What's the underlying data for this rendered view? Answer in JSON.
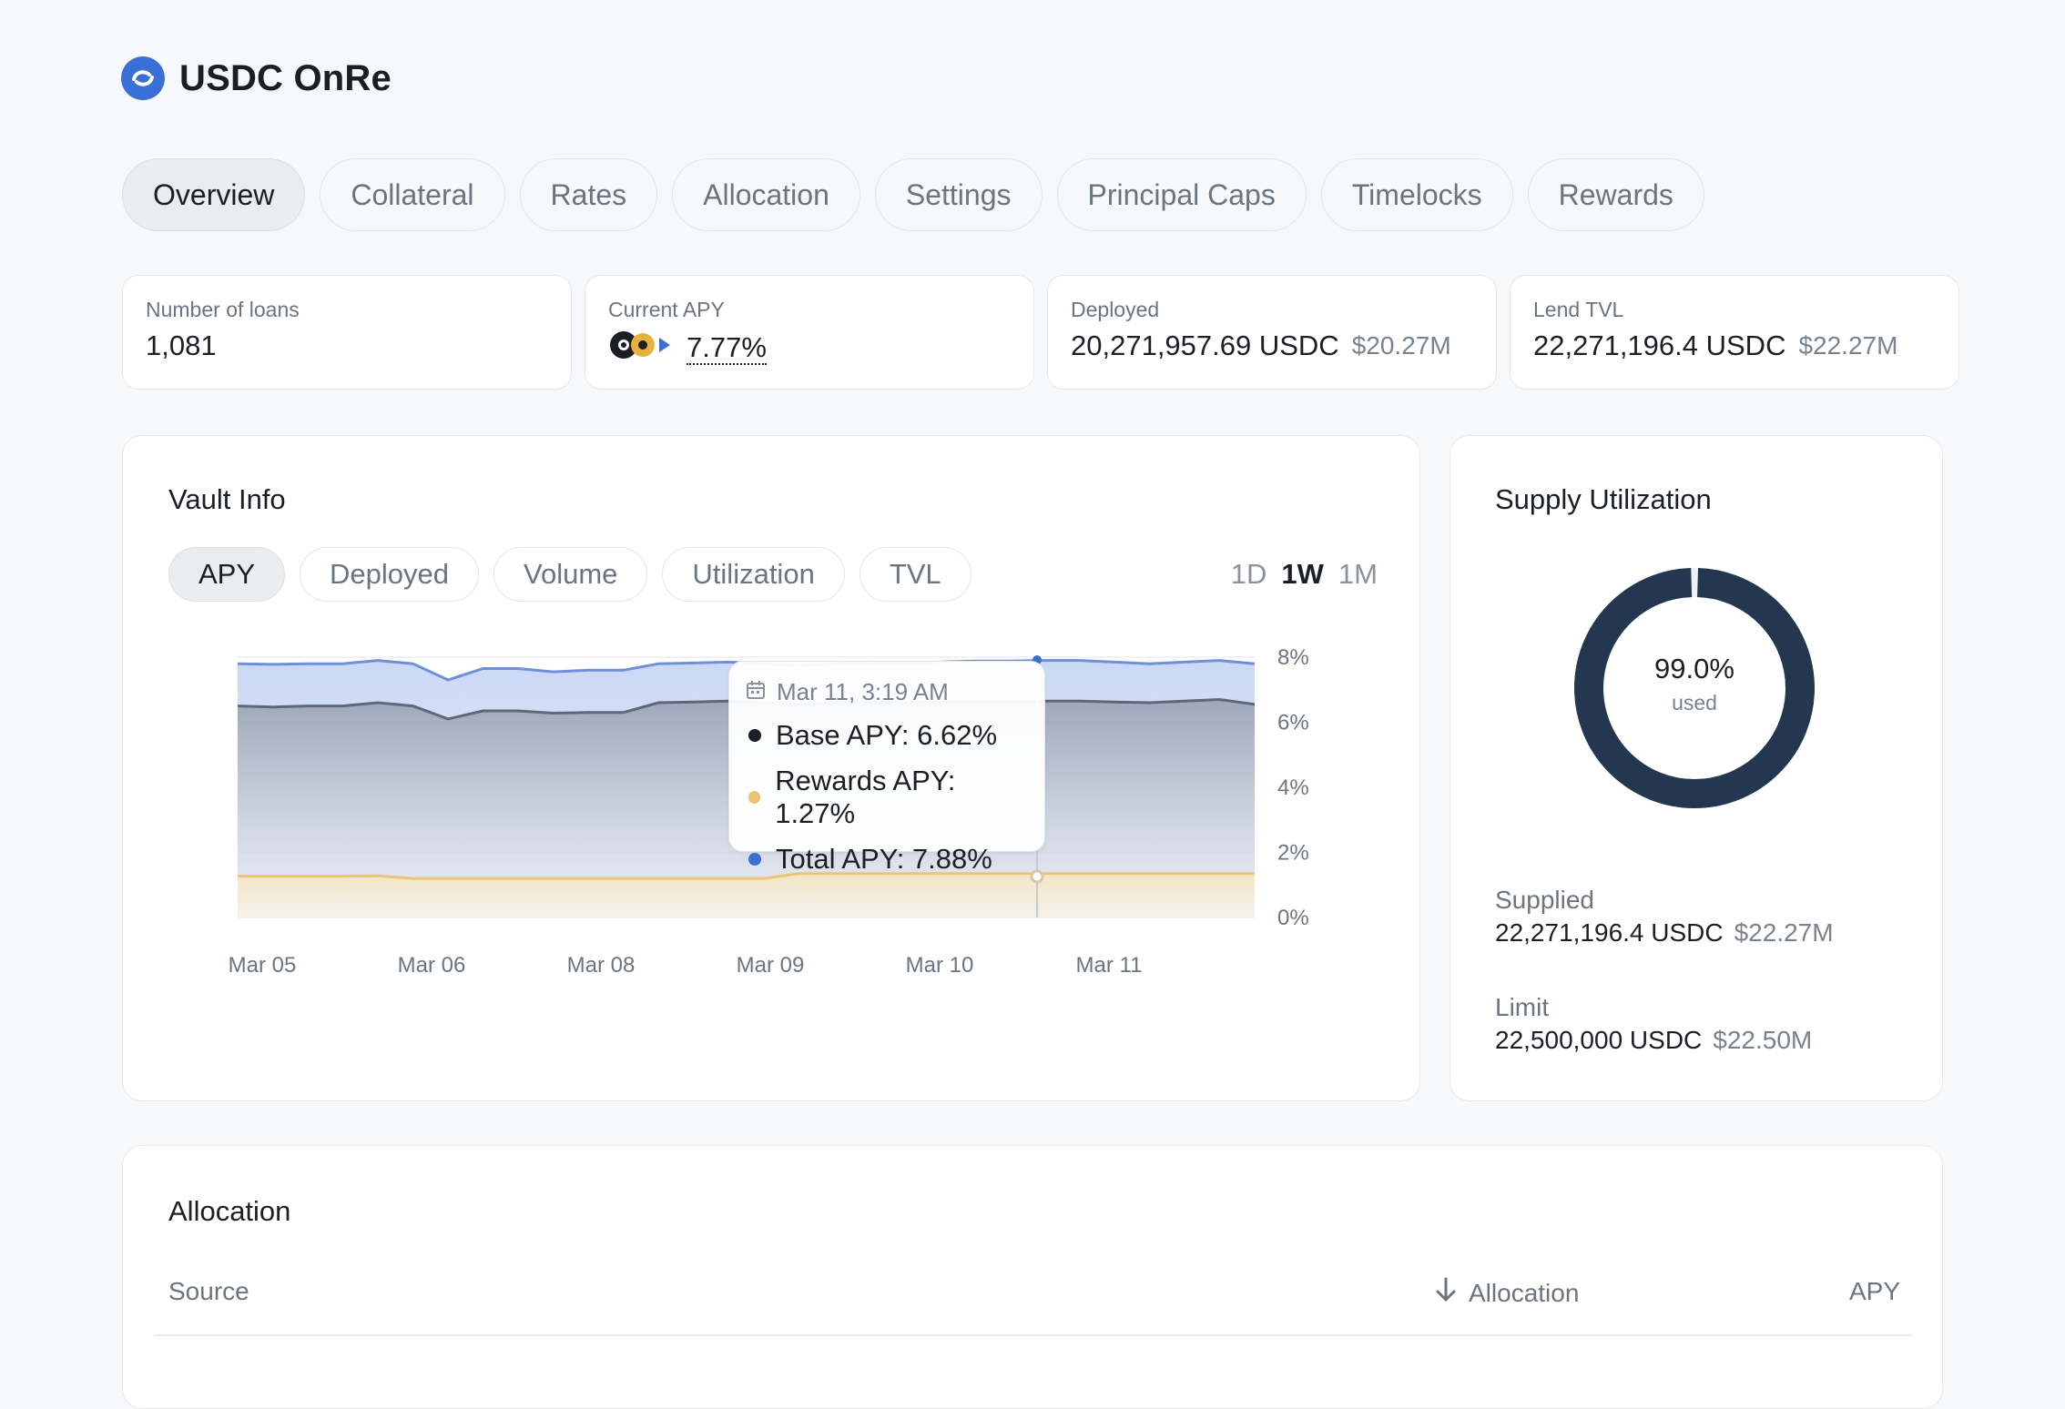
{
  "header": {
    "title": "USDC OnRe"
  },
  "tabs": [
    "Overview",
    "Collateral",
    "Rates",
    "Allocation",
    "Settings",
    "Principal Caps",
    "Timelocks",
    "Rewards"
  ],
  "stats": {
    "loans": {
      "label": "Number of loans",
      "value": "1,081"
    },
    "apy": {
      "label": "Current APY",
      "value": "7.77%"
    },
    "deployed": {
      "label": "Deployed",
      "value": "20,271,957.69 USDC",
      "usd": "$20.27M"
    },
    "tvl": {
      "label": "Lend TVL",
      "value": "22,271,196.4 USDC",
      "usd": "$22.27M"
    }
  },
  "vault": {
    "title": "Vault Info",
    "metric_tabs": [
      "APY",
      "Deployed",
      "Volume",
      "Utilization",
      "TVL"
    ],
    "ranges": [
      "1D",
      "1W",
      "1M"
    ]
  },
  "tooltip": {
    "date": "Mar 11, 3:19 AM",
    "base": "Base APY: 6.62%",
    "rewards": "Rewards APY: 1.27%",
    "total": "Total APY: 7.88%"
  },
  "chart_data": {
    "type": "area",
    "x_ticks": [
      "Mar 05",
      "Mar 06",
      "Mar 08",
      "Mar 09",
      "Mar 10",
      "Mar 11"
    ],
    "y_ticks": [
      "8%",
      "6%",
      "4%",
      "2%",
      "0%"
    ],
    "ylim": [
      0,
      8
    ],
    "series": [
      {
        "name": "Total APY",
        "color": "#6f8fd8",
        "values": [
          7.8,
          7.78,
          7.8,
          7.8,
          7.9,
          7.8,
          7.3,
          7.65,
          7.65,
          7.55,
          7.6,
          7.6,
          7.8,
          7.82,
          7.85,
          7.8,
          7.75,
          7.8,
          7.85,
          7.82,
          7.85,
          7.88,
          7.88,
          7.9,
          7.9,
          7.85,
          7.8,
          7.85,
          7.9,
          7.8
        ]
      },
      {
        "name": "Base APY",
        "color": "#5f6874",
        "values": [
          6.5,
          6.47,
          6.5,
          6.5,
          6.6,
          6.5,
          6.1,
          6.35,
          6.35,
          6.28,
          6.3,
          6.3,
          6.6,
          6.62,
          6.65,
          6.6,
          6.55,
          6.6,
          6.62,
          6.6,
          6.62,
          6.62,
          6.62,
          6.65,
          6.65,
          6.62,
          6.6,
          6.65,
          6.7,
          6.55
        ]
      },
      {
        "name": "Rewards APY",
        "color": "#ebc477",
        "values": [
          1.27,
          1.27,
          1.27,
          1.27,
          1.28,
          1.2,
          1.2,
          1.2,
          1.2,
          1.2,
          1.2,
          1.2,
          1.2,
          1.2,
          1.2,
          1.2,
          1.35,
          1.35,
          1.35,
          1.35,
          1.35,
          1.35,
          1.35,
          1.35,
          1.35,
          1.35,
          1.35,
          1.35,
          1.35,
          1.35
        ]
      }
    ]
  },
  "supply": {
    "title": "Supply Utilization",
    "percent": "99.0%",
    "percent_value": 99.0,
    "used_label": "used",
    "supplied_label": "Supplied",
    "supplied_value": "22,271,196.4 USDC",
    "supplied_usd": "$22.27M",
    "limit_label": "Limit",
    "limit_value": "22,500,000 USDC",
    "limit_usd": "$22.50M",
    "ring_color": "#233750"
  },
  "allocation": {
    "title": "Allocation",
    "col_source": "Source",
    "col_allocation": "Allocation",
    "col_apy": "APY"
  }
}
